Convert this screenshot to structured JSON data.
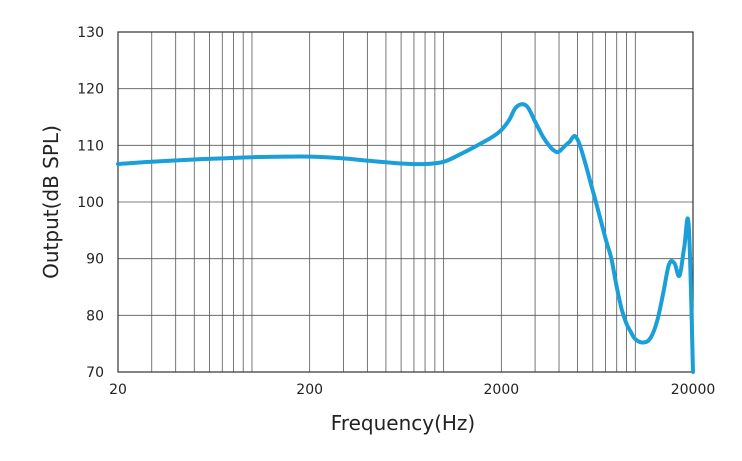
{
  "chart_data": {
    "type": "line",
    "title": "",
    "xlabel": "Frequency(Hz)",
    "ylabel": "Output(dB SPL)",
    "x_scale": "log",
    "xlim": [
      20,
      20000
    ],
    "ylim": [
      70,
      130
    ],
    "x_ticks": [
      "20",
      "200",
      "2000",
      "20000"
    ],
    "y_ticks": [
      "130",
      "120",
      "110",
      "100",
      "90",
      "80",
      "70"
    ],
    "grid": true,
    "legend": "none",
    "colors": {
      "line": "#1a9fd9",
      "grid": "#555555",
      "text": "#222222"
    },
    "series": [
      {
        "x": [
          20,
          30,
          50,
          70,
          100,
          150,
          200,
          300,
          400,
          600,
          800,
          1000,
          1200,
          1500,
          1800,
          2000,
          2200,
          2400,
          2700,
          3000,
          3300,
          3600,
          3800,
          4000,
          4500,
          5000,
          6000,
          7000,
          7500,
          8000,
          8500,
          9000,
          9500,
          10000,
          11000,
          12000,
          13000,
          14000,
          15000,
          16000,
          17000,
          18000,
          19000,
          20000
        ],
        "y": [
          106.7,
          107.1,
          107.5,
          107.7,
          107.9,
          108.0,
          108.0,
          107.7,
          107.3,
          106.8,
          106.7,
          107.1,
          108.3,
          110.0,
          111.5,
          112.7,
          114.5,
          116.8,
          117.0,
          114.2,
          111.5,
          109.7,
          109.0,
          108.9,
          110.5,
          111.0,
          102.0,
          93.5,
          90.0,
          85.0,
          81.0,
          78.5,
          77.0,
          75.8,
          75.2,
          76.0,
          79.0,
          84.0,
          89.0,
          89.2,
          87.0,
          92.0,
          95.8,
          70.0
        ]
      }
    ]
  }
}
